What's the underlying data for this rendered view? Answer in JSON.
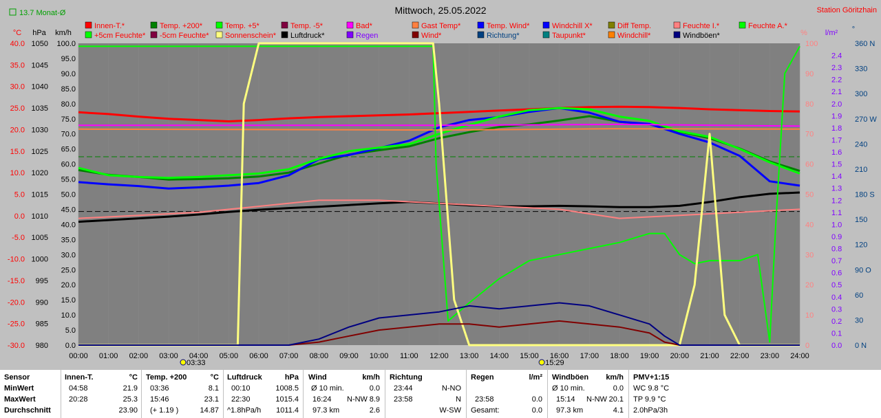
{
  "header": {
    "monat_label": "13.7 Monat-Ø",
    "title": "Mittwoch, 25.05.2022",
    "station": "Station Göritzhain"
  },
  "legend": [
    {
      "label": "Innen-T.*",
      "color": "#ff0000",
      "text_color": "#ff0000"
    },
    {
      "label": "Temp. +200*",
      "color": "#008000",
      "text_color": "#ff0000"
    },
    {
      "label": "Temp. +5*",
      "color": "#00ff00",
      "text_color": "#ff0000"
    },
    {
      "label": "Temp. -5*",
      "color": "#800040",
      "text_color": "#ff0000"
    },
    {
      "label": "Bad*",
      "color": "#ff00ff",
      "text_color": "#ff0000"
    },
    {
      "label": "Gast Temp*",
      "color": "#ff8040",
      "text_color": "#ff0000"
    },
    {
      "label": "Temp. Wind*",
      "color": "#0000ff",
      "text_color": "#ff0000"
    },
    {
      "label": "Windchill X*",
      "color": "#0000ff",
      "text_color": "#ff0000"
    },
    {
      "label": "Diff Temp.",
      "color": "#808000",
      "text_color": "#ff0000"
    },
    {
      "label": "Feuchte I.*",
      "color": "#ff8080",
      "text_color": "#ff0000"
    },
    {
      "label": "Feuchte A.*",
      "color": "#00ff00",
      "text_color": "#ff0000"
    },
    {
      "label": "+5cm Feuchte*",
      "color": "#00ff00",
      "text_color": "#ff0000"
    },
    {
      "label": "-5cm Feuchte*",
      "color": "#800040",
      "text_color": "#ff0000"
    },
    {
      "label": "Sonnenschein*",
      "color": "#ffff80",
      "text_color": "#ff0000"
    },
    {
      "label": "Luftdruck*",
      "color": "#000000",
      "text_color": "#000000"
    },
    {
      "label": "Regen",
      "color": "#8000ff",
      "text_color": "#8000ff"
    },
    {
      "label": "Wind*",
      "color": "#800000",
      "text_color": "#ff0000"
    },
    {
      "label": "Richtung*",
      "color": "#004080",
      "text_color": "#004080"
    },
    {
      "label": "Taupunkt*",
      "color": "#008080",
      "text_color": "#ff0000"
    },
    {
      "label": "Windchill*",
      "color": "#ff8000",
      "text_color": "#ff0000"
    },
    {
      "label": "Windböen*",
      "color": "#000080",
      "text_color": "#000000"
    }
  ],
  "chart_data": {
    "type": "line",
    "title": "Mittwoch, 25.05.2022",
    "x_ticks": [
      "00:00",
      "01:00",
      "02:00",
      "03:00",
      "04:00",
      "05:00",
      "06:00",
      "07:00",
      "08:00",
      "09:00",
      "10:00",
      "11:00",
      "12:00",
      "13:00",
      "14:00",
      "15:00",
      "16:00",
      "17:00",
      "18:00",
      "19:00",
      "20:00",
      "21:00",
      "22:00",
      "23:00",
      "24:00"
    ],
    "axes": {
      "temp": {
        "unit": "°C",
        "ticks": [
          "40.0",
          "35.0",
          "30.0",
          "25.0",
          "20.0",
          "15.0",
          "10.0",
          "5.0",
          "0.0",
          "-5.0",
          "-10.0",
          "-15.0",
          "-20.0",
          "-25.0",
          "-30.0"
        ],
        "color": "#ff0000",
        "range": [
          -30,
          40
        ]
      },
      "pressure": {
        "unit": "hPa",
        "ticks": [
          "1050",
          "1045",
          "1040",
          "1035",
          "1030",
          "1025",
          "1020",
          "1015",
          "1010",
          "1005",
          "1000",
          "995",
          "990",
          "985",
          "980"
        ],
        "color": "#000000",
        "range": [
          980,
          1050
        ]
      },
      "wind": {
        "unit": "km/h",
        "ticks": [
          "100.0",
          "95.0",
          "90.0",
          "85.0",
          "80.0",
          "75.0",
          "70.0",
          "65.0",
          "60.0",
          "55.0",
          "50.0",
          "45.0",
          "40.0",
          "35.0",
          "30.0",
          "25.0",
          "20.0",
          "15.0",
          "10.0",
          "5.0",
          "0.0"
        ],
        "color": "#000000",
        "range": [
          0,
          100
        ]
      },
      "humidity": {
        "unit": "%",
        "ticks": [
          "100",
          "90",
          "80",
          "70",
          "60",
          "50",
          "40",
          "30",
          "20",
          "10",
          "0"
        ],
        "color": "#ff8080",
        "range": [
          0,
          100
        ]
      },
      "rain": {
        "unit": "l/m²",
        "ticks": [
          "2.4",
          "2.3",
          "2.2",
          "2.1",
          "2.0",
          "1.9",
          "1.8",
          "1.7",
          "1.6",
          "1.5",
          "1.4",
          "1.3",
          "1.2",
          "1.1",
          "1.0",
          "0.9",
          "0.8",
          "0.7",
          "0.6",
          "0.5",
          "0.4",
          "0.3",
          "0.2",
          "0.1",
          "0.0"
        ],
        "color": "#8000ff",
        "range": [
          0,
          2.5
        ]
      },
      "direction": {
        "unit": "°",
        "ticks": [
          "360 N",
          "330",
          "300",
          "270 W",
          "240",
          "210",
          "180 S",
          "150",
          "120",
          "90 O",
          "60",
          "30",
          "0 N"
        ],
        "color": "#004080",
        "range": [
          0,
          360
        ]
      }
    },
    "sunrise": "03:33",
    "sunset": "15:29",
    "series": [
      {
        "name": "Innen-T.*",
        "axis": "temp",
        "color": "#ff0000",
        "width": 3,
        "x": [
          0,
          1,
          2,
          3,
          4,
          5,
          6,
          7,
          8,
          9,
          10,
          11,
          12,
          13,
          14,
          15,
          16,
          17,
          18,
          19,
          20,
          21,
          22,
          23,
          24
        ],
        "y": [
          24.0,
          23.6,
          23.0,
          22.5,
          22.2,
          21.9,
          22.2,
          22.6,
          22.9,
          23.1,
          23.3,
          23.5,
          23.8,
          24.1,
          24.4,
          24.7,
          25.0,
          25.2,
          25.3,
          25.2,
          25.0,
          24.7,
          24.5,
          24.3,
          24.2
        ]
      },
      {
        "name": "Luftdruck*",
        "axis": "pressure",
        "color": "#000000",
        "width": 3,
        "x": [
          0,
          1,
          2,
          3,
          4,
          5,
          6,
          7,
          8,
          9,
          10,
          11,
          12,
          13,
          14,
          15,
          16,
          17,
          18,
          19,
          20,
          21,
          22,
          23,
          24
        ],
        "y": [
          1008.6,
          1009.0,
          1009.4,
          1009.8,
          1010.3,
          1010.9,
          1011.4,
          1011.8,
          1012.1,
          1012.5,
          1012.9,
          1013.2,
          1012.9,
          1012.4,
          1012.2,
          1012.2,
          1012.3,
          1012.2,
          1012.0,
          1012.0,
          1012.3,
          1013.2,
          1014.3,
          1015.1,
          1015.4
        ]
      },
      {
        "name": "Temp. +200*",
        "axis": "temp",
        "color": "#008000",
        "width": 3,
        "x": [
          0,
          1,
          2,
          3,
          4,
          5,
          6,
          7,
          8,
          9,
          10,
          11,
          12,
          13,
          14,
          15,
          16,
          17,
          18,
          19,
          20,
          21,
          22,
          23,
          24
        ],
        "y": [
          10.6,
          9.5,
          9.0,
          8.4,
          8.5,
          8.7,
          9.1,
          10.0,
          12.1,
          14.2,
          15.2,
          16.1,
          18.0,
          19.4,
          20.6,
          21.2,
          22.1,
          23.1,
          21.8,
          21.2,
          19.5,
          18.0,
          15.6,
          12.6,
          10.4
        ]
      },
      {
        "name": "Temp. Wind*",
        "axis": "temp",
        "color": "#0000ff",
        "width": 3,
        "x": [
          0,
          1,
          2,
          3,
          4,
          5,
          6,
          7,
          8,
          9,
          10,
          11,
          12,
          13,
          14,
          15,
          16,
          17,
          18,
          19,
          20,
          21,
          22,
          23,
          24
        ],
        "y": [
          7.8,
          7.3,
          6.9,
          6.3,
          6.6,
          7.0,
          7.6,
          9.4,
          13.1,
          14.1,
          15.7,
          17.4,
          20.5,
          22.2,
          22.9,
          24.1,
          25.0,
          23.9,
          21.8,
          21.3,
          19.0,
          17.0,
          13.9,
          8.0,
          7.0
        ]
      },
      {
        "name": "Temp. +5*",
        "axis": "temp",
        "color": "#00ff00",
        "width": 3,
        "x": [
          0,
          1,
          2,
          3,
          4,
          5,
          6,
          7,
          8,
          9,
          10,
          11,
          12,
          13,
          14,
          15,
          16,
          17,
          18,
          19,
          20,
          21,
          22,
          23,
          24
        ],
        "y": [
          11.1,
          9.4,
          9.0,
          8.8,
          9.0,
          9.4,
          9.8,
          10.8,
          13.2,
          15.0,
          15.8,
          16.6,
          19.0,
          21.1,
          23.0,
          24.5,
          25.0,
          24.7,
          23.0,
          22.0,
          19.6,
          18.3,
          15.5,
          12.4,
          9.8
        ]
      },
      {
        "name": "Bad*",
        "axis": "temp",
        "color": "#ff00ff",
        "width": 2,
        "x": [
          0,
          6,
          12,
          18,
          24
        ],
        "y": [
          21.0,
          21.0,
          21.0,
          21.2,
          20.8
        ]
      },
      {
        "name": "Gast Temp*",
        "axis": "temp",
        "color": "#ff8040",
        "width": 2,
        "x": [
          0,
          6,
          12,
          18,
          24
        ],
        "y": [
          20.1,
          20.0,
          19.9,
          20.2,
          20.1
        ]
      },
      {
        "name": "Feuchte I.*",
        "axis": "humidity",
        "color": "#ff8080",
        "width": 2,
        "x": [
          0,
          2,
          4,
          6,
          8,
          10,
          12,
          14,
          16,
          18,
          20,
          22,
          24
        ],
        "y": [
          42,
          43,
          44,
          46,
          48,
          48,
          47,
          46,
          45,
          42,
          43,
          44,
          45
        ]
      },
      {
        "name": "Feuchte A.*",
        "axis": "humidity",
        "color": "#00ff00",
        "width": 2,
        "x": [
          0,
          11.8,
          11.9,
          12.3,
          13,
          14,
          15,
          16,
          17,
          18,
          19,
          19.5,
          20,
          20.5,
          21,
          22,
          22.6,
          23,
          23.2,
          23.5,
          24
        ],
        "y": [
          99,
          99,
          60,
          8,
          14,
          22,
          28,
          30,
          32,
          34,
          37,
          37,
          30,
          27,
          28,
          28,
          30,
          1,
          40,
          90,
          99
        ]
      },
      {
        "name": "Sonnenschein*",
        "axis": "wind",
        "color": "#ffff80",
        "width": 3,
        "x": [
          0,
          5.3,
          5.5,
          6,
          11.8,
          12,
          12.5,
          13,
          20,
          20.5,
          21,
          21.5,
          22,
          24
        ],
        "y": [
          0,
          0,
          80,
          100,
          100,
          80,
          15,
          0,
          0,
          20,
          70,
          10,
          0,
          0
        ]
      },
      {
        "name": "Wind*",
        "axis": "wind",
        "color": "#800000",
        "width": 2,
        "x": [
          0,
          7,
          8,
          9,
          10,
          11,
          12,
          13,
          14,
          15,
          16,
          17,
          18,
          19,
          19.5,
          20,
          24
        ],
        "y": [
          0,
          0,
          1,
          3,
          5,
          6,
          7,
          7,
          6,
          7,
          8,
          7,
          6,
          4,
          1,
          0,
          0
        ]
      },
      {
        "name": "Windböen*",
        "axis": "wind",
        "color": "#000080",
        "width": 2,
        "x": [
          0,
          7,
          8,
          9,
          10,
          11,
          12,
          13,
          14,
          15,
          16,
          17,
          18,
          19,
          19.5,
          20,
          24
        ],
        "y": [
          0,
          0,
          2,
          6,
          9,
          10,
          11,
          13,
          12,
          13,
          14,
          13,
          10,
          7,
          3,
          0,
          0
        ]
      }
    ],
    "reference_lines": [
      {
        "axis": "temp",
        "value": 13.7,
        "color": "#008000"
      },
      {
        "axis": "pressure",
        "value": 1011.0,
        "color": "#000000"
      }
    ]
  },
  "stats": {
    "sensor": {
      "h": "Sensor",
      "min": "MinWert",
      "max": "MaxWert",
      "avg": "Durchschnitt"
    },
    "innen": {
      "h": "Innen-T.",
      "unit": "°C",
      "min_t": "04:58",
      "min_v": "21.9",
      "max_t": "20:28",
      "max_v": "25.3",
      "avg_v": "23.90"
    },
    "temp200": {
      "h": "Temp. +200",
      "unit": "°C",
      "min_t": "03:36",
      "min_v": "8.1",
      "max_t": "15:46",
      "max_v": "23.1",
      "avg_t": "(+ 1.19 )",
      "avg_v": "14.87"
    },
    "luftdruck": {
      "h": "Luftdruck",
      "unit": "hPa",
      "min_t": "00:10",
      "min_v": "1008.5",
      "max_t": "22:30",
      "max_v": "1015.4",
      "avg_t": "^1.8hPa/h",
      "avg_v": "1011.4"
    },
    "wind": {
      "h": "Wind",
      "unit": "km/h",
      "min_t": "Ø 10 min.",
      "min_v": "0.0",
      "max_t": "16:24",
      "max_dir": "N-NW",
      "max_v": "8.9",
      "avg_t": "97.3 km",
      "avg_v": "2.6"
    },
    "richtung": {
      "h": "Richtung",
      "min_t": "23:44",
      "min_v": "N-NO",
      "max_t": "23:58",
      "max_v": "N",
      "avg_v": "W-SW"
    },
    "regen": {
      "h": "Regen",
      "unit": "l/m²",
      "max_t": "23:58",
      "max_v": "0.0",
      "avg_t": "Gesamt:",
      "avg_v": "0.0"
    },
    "windboen": {
      "h": "Windböen",
      "unit": "km/h",
      "min_t": "Ø 10 min.",
      "min_v": "0.0",
      "max_t": "15:14",
      "max_dir": "N-NW",
      "max_v": "20.1",
      "avg_t": "97.3 km",
      "avg_v": "4.1"
    },
    "pmv": {
      "h": "PMV+1:15",
      "l1": "WC 9.8 °C",
      "l2": "TP 9.9 °C",
      "l3": "2.0hPa/3h"
    }
  }
}
